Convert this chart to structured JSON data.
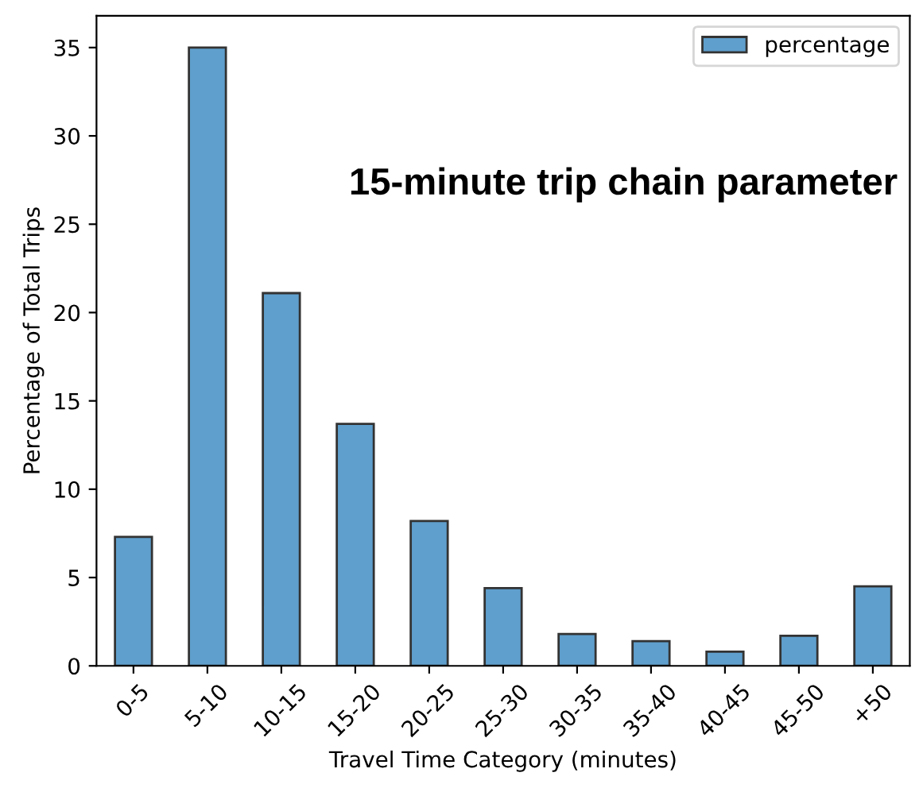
{
  "chart_data": {
    "type": "bar",
    "categories": [
      "0-5",
      "5-10",
      "10-15",
      "15-20",
      "20-25",
      "25-30",
      "30-35",
      "35-40",
      "40-45",
      "45-50",
      "+50"
    ],
    "series": [
      {
        "name": "percentage",
        "color": "#5f9fcd",
        "values": [
          7.3,
          35.0,
          21.1,
          13.7,
          8.2,
          4.4,
          1.8,
          1.4,
          0.8,
          1.7,
          4.5
        ]
      }
    ],
    "xlabel": "Travel Time Category (minutes)",
    "ylabel": "Percentage of Total Trips",
    "ylim": [
      0,
      36.8
    ],
    "yticks": [
      0,
      5,
      10,
      15,
      20,
      25,
      30,
      35
    ],
    "annotations": [
      "15-minute trip chain parameter"
    ],
    "legend": "top right",
    "grid": false
  }
}
